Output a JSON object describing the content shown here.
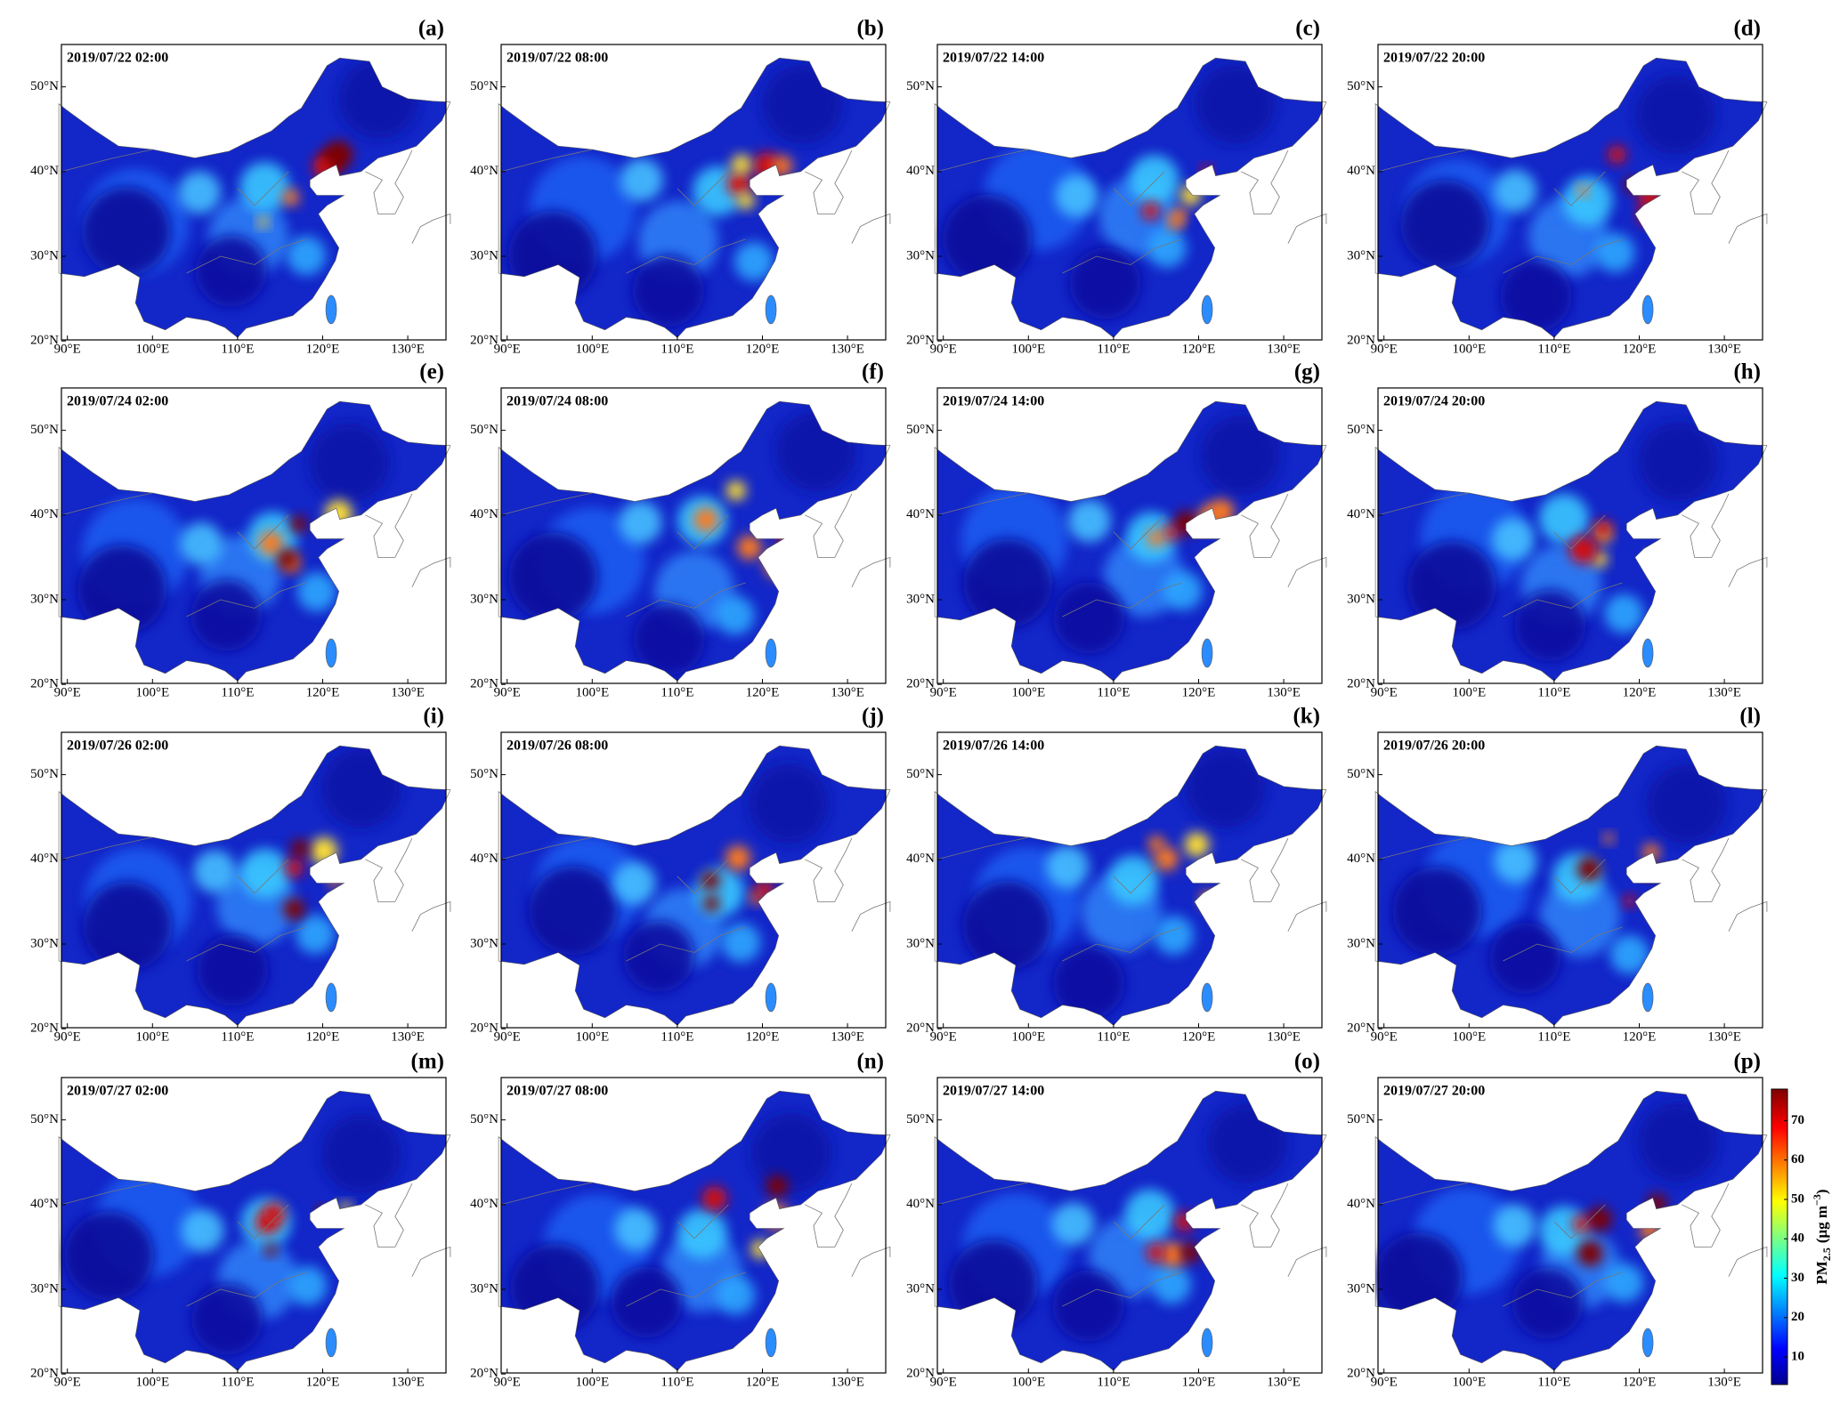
{
  "panels": [
    {
      "label": "(a)",
      "time": "2019/07/22 02:00"
    },
    {
      "label": "(b)",
      "time": "2019/07/22 08:00"
    },
    {
      "label": "(c)",
      "time": "2019/07/22 14:00"
    },
    {
      "label": "(d)",
      "time": "2019/07/22 20:00"
    },
    {
      "label": "(e)",
      "time": "2019/07/24 02:00"
    },
    {
      "label": "(f)",
      "time": "2019/07/24 08:00"
    },
    {
      "label": "(g)",
      "time": "2019/07/24 14:00"
    },
    {
      "label": "(h)",
      "time": "2019/07/24 20:00"
    },
    {
      "label": "(i)",
      "time": "2019/07/26 02:00"
    },
    {
      "label": "(j)",
      "time": "2019/07/26 08:00"
    },
    {
      "label": "(k)",
      "time": "2019/07/26 14:00"
    },
    {
      "label": "(l)",
      "time": "2019/07/26 20:00"
    },
    {
      "label": "(m)",
      "time": "2019/07/27 02:00"
    },
    {
      "label": "(n)",
      "time": "2019/07/27 08:00"
    },
    {
      "label": "(o)",
      "time": "2019/07/27 14:00"
    },
    {
      "label": "(p)",
      "time": "2019/07/27 20:00"
    }
  ],
  "x_ticks": [
    "90°E",
    "100°E",
    "110°E",
    "120°E",
    "130°E"
  ],
  "y_ticks": [
    "20°N",
    "30°N",
    "40°N",
    "50°N"
  ],
  "colorbar": {
    "ticks": [
      10,
      20,
      30,
      40,
      50,
      60,
      70
    ],
    "label_main": "PM",
    "label_sub": "2.5",
    "label_unit": "(μg m",
    "label_exp": "−3",
    "label_end": ")"
  }
}
